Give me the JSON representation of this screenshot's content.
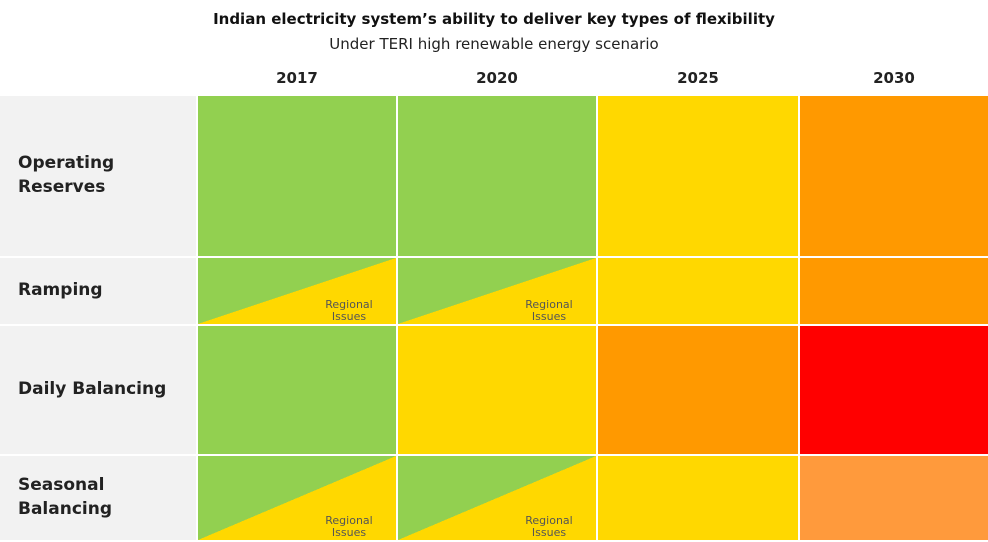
{
  "header": {
    "title": "Indian electricity system’s ability to deliver key types of flexibility",
    "subtitle": "Under TERI high renewable energy scenario"
  },
  "table": {
    "columns": [
      "2017",
      "2020",
      "2025",
      "2030"
    ],
    "rows": [
      {
        "label": "Operating Reserves",
        "cells": [
          {
            "color": "#92d050"
          },
          {
            "color": "#92d050"
          },
          {
            "color": "#ffd800"
          },
          {
            "color": "#ff9900"
          }
        ]
      },
      {
        "label": "Ramping",
        "cells": [
          {
            "color": "#92d050",
            "color2": "#ffd800",
            "note": "Regional Issues"
          },
          {
            "color": "#92d050",
            "color2": "#ffd800",
            "note": "Regional Issues"
          },
          {
            "color": "#ffd800"
          },
          {
            "color": "#ff9900"
          }
        ]
      },
      {
        "label": "Daily Balancing",
        "cells": [
          {
            "color": "#92d050"
          },
          {
            "color": "#ffd800"
          },
          {
            "color": "#ff9900"
          },
          {
            "color": "#ff0000"
          }
        ]
      },
      {
        "label": "Seasonal Balancing",
        "cells": [
          {
            "color": "#92d050",
            "color2": "#ffd800",
            "note": "Regional Issues"
          },
          {
            "color": "#92d050",
            "color2": "#ffd800",
            "note": "Regional Issues"
          },
          {
            "color": "#ffd800"
          },
          {
            "color": "#ff9a3c"
          }
        ]
      }
    ]
  }
}
